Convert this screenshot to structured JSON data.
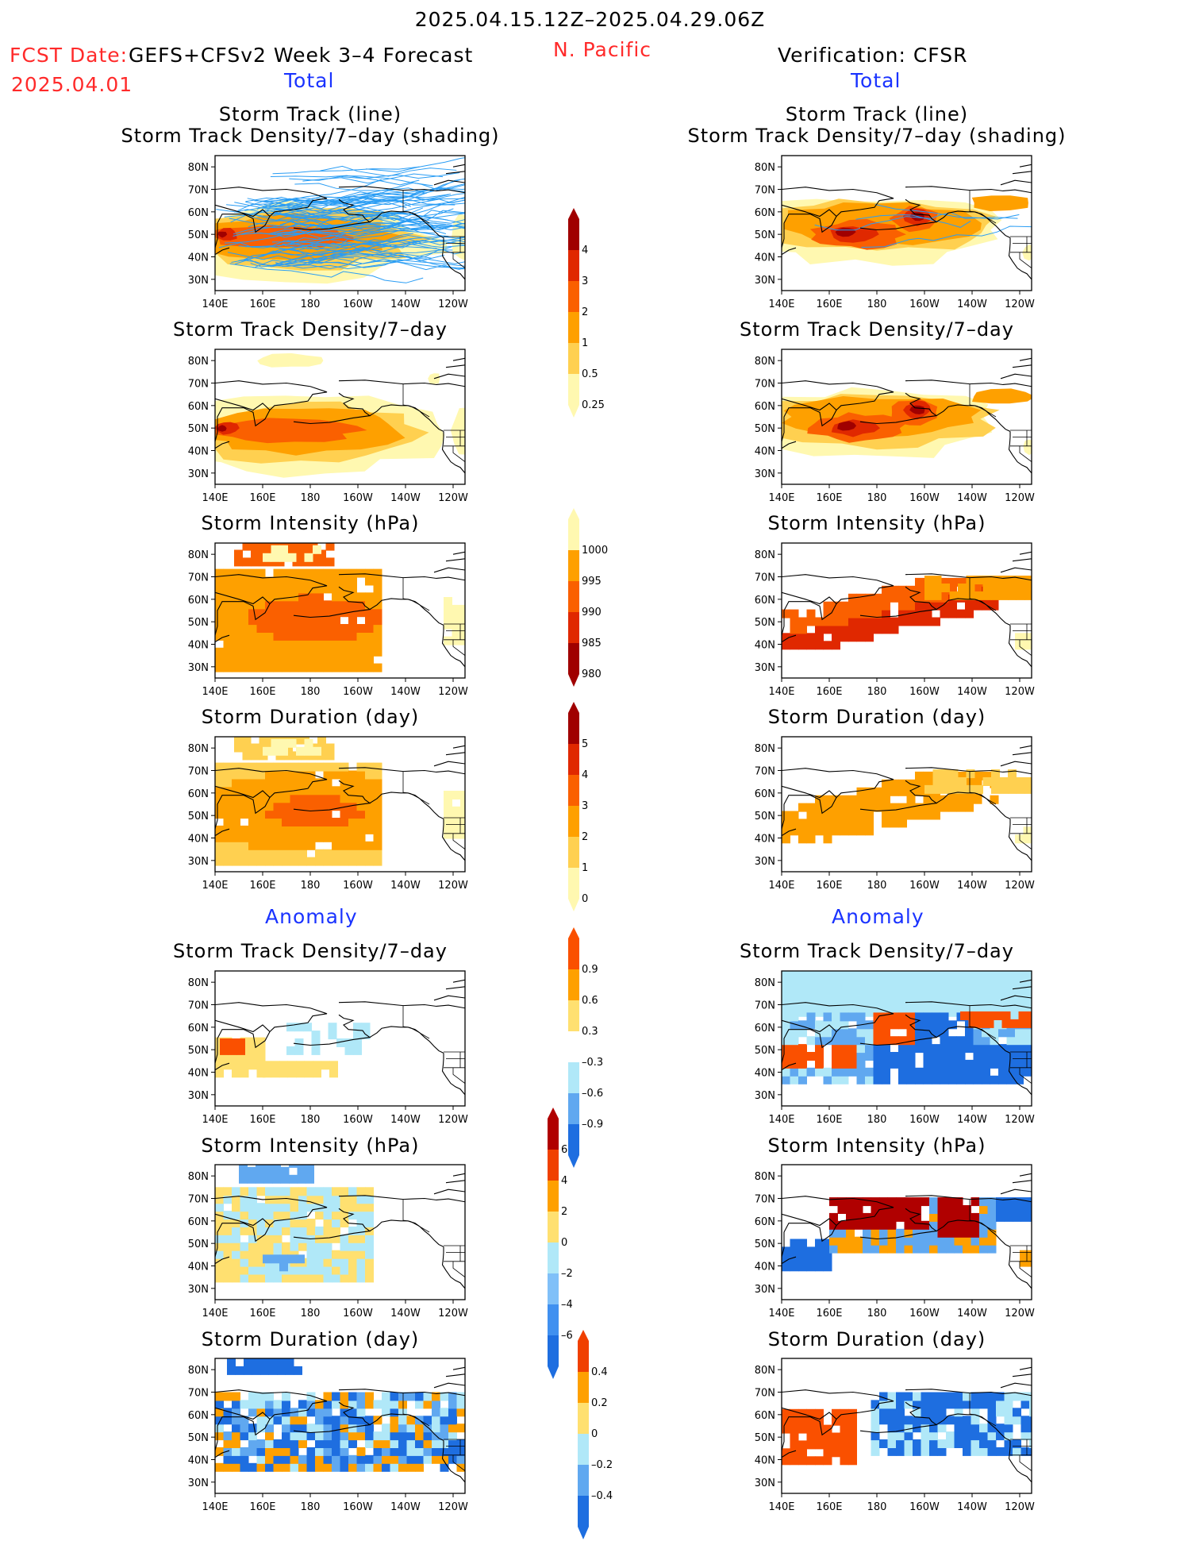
{
  "header": {
    "date_range": "2025.04.15.12Z–2025.04.29.06Z",
    "fcst_prefix": "FCST Date:",
    "fcst_date": "2025.04.01",
    "forecast_label": "GEFS+CFSv2 Week 3–4 Forecast",
    "region": "N. Pacific",
    "verification_label": "Verification: CFSR"
  },
  "sections": {
    "total_left": "Total",
    "total_right": "Total",
    "anomaly_left": "Anomaly",
    "anomaly_right": "Anomaly"
  },
  "panel_titles": {
    "track_line": "Storm Track (line)",
    "track_shading": "Storm Track Density/7–day (shading)",
    "density": "Storm Track Density/7–day",
    "intensity": "Storm Intensity (hPa)",
    "duration": "Storm Duration (day)"
  },
  "axes": {
    "x_ticks": [
      "140E",
      "160E",
      "180",
      "160W",
      "140W",
      "120W"
    ],
    "y_ticks": [
      "80N",
      "70N",
      "60N",
      "50N",
      "40N",
      "30N"
    ]
  },
  "colorbars": {
    "density_total": {
      "labels": [
        "4",
        "3",
        "2",
        "1",
        "0.5",
        "0.25"
      ],
      "colors": [
        "#a00000",
        "#e02800",
        "#fa6000",
        "#fea000",
        "#ffd050",
        "#fff8b0"
      ]
    },
    "intensity_total": {
      "labels": [
        "1000",
        "995",
        "990",
        "985",
        "980"
      ],
      "colors": [
        "#fff8b0",
        "#fea000",
        "#fa6000",
        "#e02800",
        "#a00000"
      ]
    },
    "duration_total": {
      "labels": [
        "5",
        "4",
        "3",
        "2",
        "1",
        "0"
      ],
      "colors": [
        "#a00000",
        "#e02800",
        "#fa6000",
        "#fea000",
        "#ffd050",
        "#fff8b0"
      ]
    },
    "density_anom": {
      "labels": [
        "0.9",
        "0.6",
        "0.3",
        "–0.3",
        "–0.6",
        "–0.9"
      ],
      "colors": [
        "#fa5000",
        "#fea000",
        "#ffe070",
        "#ffffff",
        "#b0e8f8",
        "#60a8f0",
        "#1e6ee0"
      ]
    },
    "intensity_anom": {
      "labels": [
        "6",
        "4",
        "2",
        "0",
        "–2",
        "–4",
        "–6"
      ],
      "colors": [
        "#b00000",
        "#f04000",
        "#fea000",
        "#ffe070",
        "#b0e8f8",
        "#80c0f8",
        "#4090f0",
        "#1e6ee0"
      ]
    },
    "duration_anom": {
      "labels": [
        "0.4",
        "0.2",
        "0",
        "–0.2",
        "–0.4"
      ],
      "colors": [
        "#f04000",
        "#fea000",
        "#ffe070",
        "#b0e8f8",
        "#60a8f0",
        "#1e6ee0"
      ]
    }
  },
  "chart_data": [
    {
      "type": "heatmap",
      "title": "Storm Track (line) / Storm Track Density/7–day (shading)",
      "side": "forecast",
      "section": "Total",
      "xlim": [
        "140E",
        "115W"
      ],
      "ylim": [
        "25N",
        "85N"
      ],
      "peak_value": 4,
      "peak_location": "50N 145E",
      "levels": [
        0.25,
        0.5,
        1,
        2,
        3,
        4
      ]
    },
    {
      "type": "heatmap",
      "title": "Storm Track Density/7–day",
      "side": "forecast",
      "section": "Total",
      "peak_value": 3,
      "main_band": "40N–60N, 140E–140W",
      "levels": [
        0.25,
        0.5,
        1,
        2,
        3,
        4
      ]
    },
    {
      "type": "heatmap",
      "title": "Storm Intensity (hPa)",
      "side": "forecast",
      "section": "Total",
      "levels": [
        980,
        985,
        990,
        995,
        1000
      ],
      "typical_value": 990
    },
    {
      "type": "heatmap",
      "title": "Storm Duration (day)",
      "side": "forecast",
      "section": "Total",
      "levels": [
        0,
        1,
        2,
        3,
        4,
        5
      ],
      "typical_value": 2
    },
    {
      "type": "heatmap",
      "title": "Storm Track (line) / Storm Track Density/7–day (shading)",
      "side": "verification",
      "section": "Total",
      "peak_value": 4,
      "peak_locations": [
        "50N 170E",
        "57N 165W"
      ],
      "levels": [
        0.25,
        0.5,
        1,
        2,
        3,
        4
      ]
    },
    {
      "type": "heatmap",
      "title": "Storm Track Density/7–day",
      "side": "verification",
      "section": "Total",
      "peak_value": 4,
      "levels": [
        0.25,
        0.5,
        1,
        2,
        3,
        4
      ]
    },
    {
      "type": "heatmap",
      "title": "Storm Intensity (hPa)",
      "side": "verification",
      "section": "Total",
      "levels": [
        980,
        985,
        990,
        995,
        1000
      ]
    },
    {
      "type": "heatmap",
      "title": "Storm Duration (day)",
      "side": "verification",
      "section": "Total",
      "levels": [
        0,
        1,
        2,
        3,
        4,
        5
      ]
    },
    {
      "type": "heatmap",
      "title": "Storm Track Density/7–day",
      "side": "forecast",
      "section": "Anomaly",
      "levels": [
        -0.9,
        -0.6,
        -0.3,
        0.3,
        0.6,
        0.9
      ]
    },
    {
      "type": "heatmap",
      "title": "Storm Intensity (hPa)",
      "side": "forecast",
      "section": "Anomaly",
      "levels": [
        -6,
        -4,
        -2,
        0,
        2,
        4,
        6
      ]
    },
    {
      "type": "heatmap",
      "title": "Storm Duration (day)",
      "side": "forecast",
      "section": "Anomaly",
      "levels": [
        -0.4,
        -0.2,
        0,
        0.2,
        0.4
      ]
    },
    {
      "type": "heatmap",
      "title": "Storm Track Density/7–day",
      "side": "verification",
      "section": "Anomaly",
      "levels": [
        -0.9,
        -0.6,
        -0.3,
        0.3,
        0.6,
        0.9
      ]
    },
    {
      "type": "heatmap",
      "title": "Storm Intensity (hPa)",
      "side": "verification",
      "section": "Anomaly",
      "levels": [
        -6,
        -4,
        -2,
        0,
        2,
        4,
        6
      ]
    },
    {
      "type": "heatmap",
      "title": "Storm Duration (day)",
      "side": "verification",
      "section": "Anomaly",
      "levels": [
        -0.4,
        -0.2,
        0,
        0.2,
        0.4
      ]
    }
  ]
}
